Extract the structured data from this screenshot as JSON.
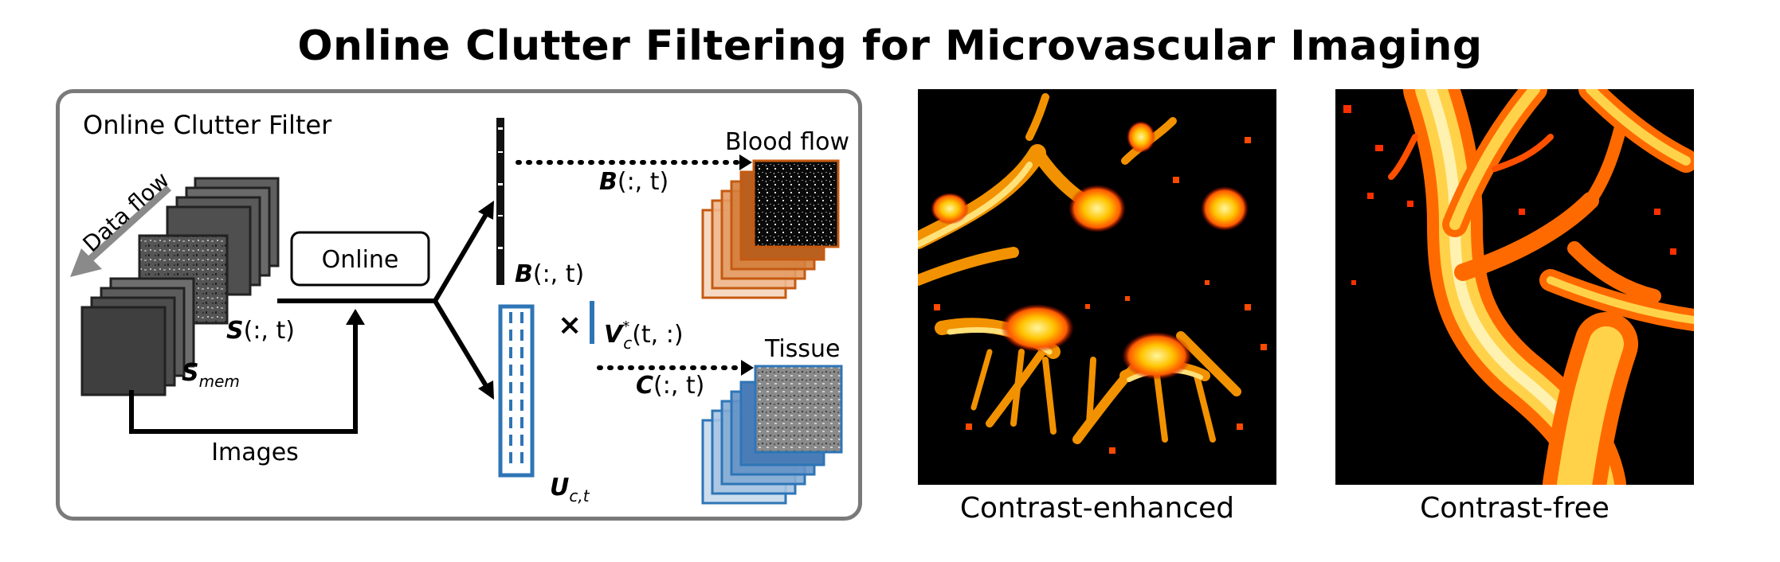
{
  "figure": {
    "title": "Online Clutter Filtering for Microvascular Imaging"
  },
  "diagram": {
    "panel_title": "Online Clutter Filter",
    "data_flow_label": "Data flow",
    "online_button": "Online",
    "images_label": "Images",
    "s_label": {
      "bold": "S",
      "rest": "(:, t)"
    },
    "smem_label": {
      "bold": "S",
      "sub": "mem"
    },
    "b_label": {
      "bold": "B",
      "rest": "(:, t)"
    },
    "b_arrow_label": {
      "bold": "B",
      "rest": "(:, t)"
    },
    "times_symbol": "×",
    "v_label": {
      "bold": "V",
      "sup": "*",
      "sub": "c",
      "rest": "(t, :)"
    },
    "c_arrow_label": {
      "bold": "C",
      "rest": "(:, t)"
    },
    "u_label": {
      "bold": "U",
      "sub": "c,t"
    },
    "blood_flow_label": "Blood flow",
    "tissue_label": "Tissue",
    "colors": {
      "blood": "#c55a11",
      "tissue": "#2e75b6",
      "border": "#7a7a7a"
    }
  },
  "images": [
    {
      "caption": "Contrast-enhanced",
      "colormap": "hot"
    },
    {
      "caption": "Contrast-free",
      "colormap": "hot"
    }
  ]
}
